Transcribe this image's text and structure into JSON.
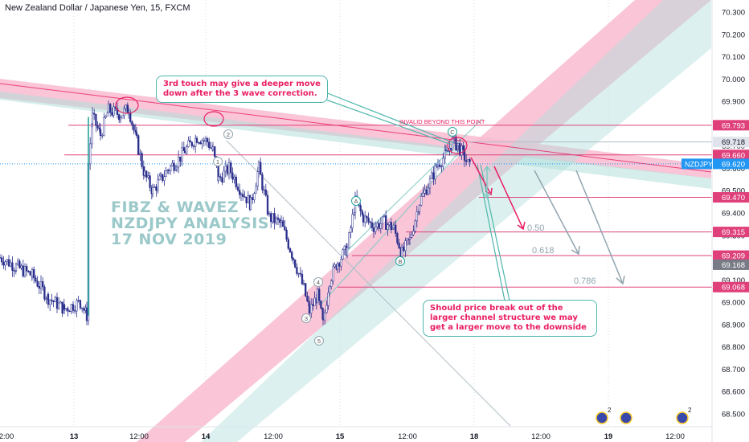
{
  "header": {
    "title": "New Zealand Dollar / Japanese Yen, 15, FXCM"
  },
  "watermark": {
    "line1": "FIBZ & WAVEZ",
    "line2": "NZDJPY ANALYSIS",
    "line3": "17 NOV 2019"
  },
  "callouts": {
    "top": "3rd touch may give a deeper move down after the 3 wave correction.",
    "bottom": "Should price break out of the larger channel structure we may get a larger move to the downside"
  },
  "annotations": {
    "invalid": "INVALID BEYOND THIS POINT",
    "fib_050": "0.50",
    "fib_0618": "0.618",
    "fib_0786": "0.786",
    "wave_labels": [
      "2",
      "1",
      "4",
      "3",
      "5",
      "A",
      "B",
      "C"
    ]
  },
  "symbol_tag": "NZDJPY",
  "colors": {
    "pink": "#e91e63",
    "teal": "#4db6ac",
    "bar": "#2a2e8c",
    "channel_pink": "#f8bbd0",
    "channel_teal": "#b2dfdb",
    "level_line": "#e0407a",
    "price_tag_blue": "#2196f3",
    "grey_tag": "#787b86"
  },
  "chart_data": {
    "type": "candlestick",
    "title": "New Zealand Dollar / Japanese Yen, 15, FXCM",
    "ylim": [
      68.44,
      70.36
    ],
    "y_ticks": [
      "70.300",
      "70.200",
      "70.100",
      "70.000",
      "69.900",
      "69.800",
      "69.700",
      "69.600",
      "69.500",
      "69.400",
      "69.300",
      "69.200",
      "69.100",
      "69.000",
      "68.900",
      "68.800",
      "68.700",
      "68.600",
      "68.500"
    ],
    "x_ticks": [
      "2:00",
      "13",
      "12:00",
      "14",
      "12:00",
      "15",
      "12:00",
      "18",
      "12:00",
      "19",
      "12:00"
    ],
    "levels": [
      {
        "label": "69.793",
        "value": 69.793
      },
      {
        "label": "69.660",
        "value": 69.66
      },
      {
        "label": "69.470",
        "value": 69.47
      },
      {
        "label": "69.315",
        "value": 69.315
      },
      {
        "label": "69.209",
        "value": 69.209
      },
      {
        "label": "69.068",
        "value": 69.068
      }
    ],
    "price_tags": [
      {
        "label": "69.718",
        "value": 69.718,
        "kind": "grey"
      },
      {
        "label": "69.620",
        "value": 69.62,
        "kind": "current"
      },
      {
        "label": "69.168",
        "value": 69.168,
        "kind": "grey"
      }
    ],
    "price_path": [
      [
        0,
        69.2
      ],
      [
        20,
        69.16
      ],
      [
        40,
        69.12
      ],
      [
        60,
        69.02
      ],
      [
        80,
        68.97
      ],
      [
        100,
        69.0
      ],
      [
        108,
        68.94
      ],
      [
        110,
        69.62
      ],
      [
        115,
        69.83
      ],
      [
        125,
        69.75
      ],
      [
        135,
        69.86
      ],
      [
        150,
        69.84
      ],
      [
        160,
        69.87
      ],
      [
        170,
        69.72
      ],
      [
        180,
        69.57
      ],
      [
        190,
        69.5
      ],
      [
        200,
        69.55
      ],
      [
        210,
        69.6
      ],
      [
        220,
        69.63
      ],
      [
        230,
        69.68
      ],
      [
        245,
        69.74
      ],
      [
        258,
        69.72
      ],
      [
        265,
        69.68
      ],
      [
        272,
        69.55
      ],
      [
        285,
        69.6
      ],
      [
        300,
        69.5
      ],
      [
        312,
        69.44
      ],
      [
        322,
        69.6
      ],
      [
        335,
        69.38
      ],
      [
        350,
        69.35
      ],
      [
        365,
        69.2
      ],
      [
        378,
        69.06
      ],
      [
        385,
        68.96
      ],
      [
        395,
        69.03
      ],
      [
        402,
        68.9
      ],
      [
        410,
        69.1
      ],
      [
        420,
        69.18
      ],
      [
        432,
        69.24
      ],
      [
        442,
        69.45
      ],
      [
        452,
        69.38
      ],
      [
        465,
        69.34
      ],
      [
        478,
        69.36
      ],
      [
        490,
        69.33
      ],
      [
        500,
        69.22
      ],
      [
        510,
        69.28
      ],
      [
        522,
        69.45
      ],
      [
        535,
        69.54
      ],
      [
        545,
        69.62
      ],
      [
        555,
        69.66
      ],
      [
        563,
        69.72
      ],
      [
        570,
        69.7
      ],
      [
        578,
        69.65
      ],
      [
        585,
        69.6
      ]
    ]
  }
}
